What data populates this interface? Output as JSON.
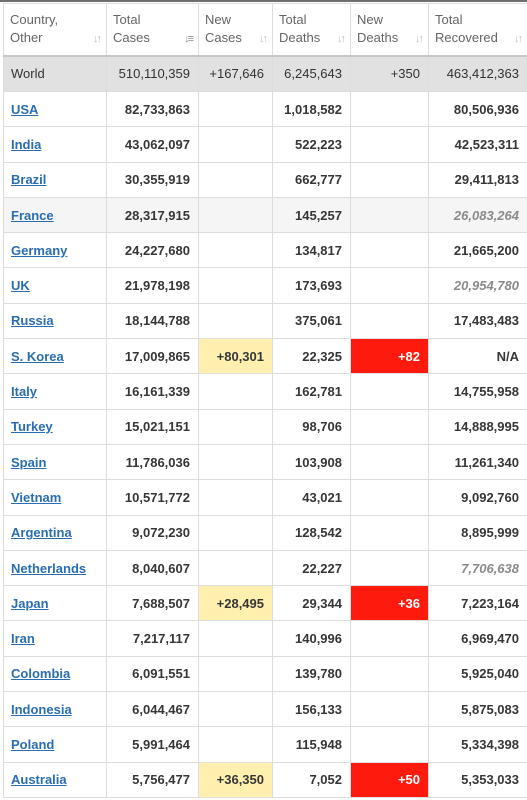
{
  "headers": {
    "country": "Country, Other",
    "total_cases": "Total Cases",
    "new_cases": "New Cases",
    "total_deaths": "Total Deaths",
    "new_deaths": "New Deaths",
    "total_recovered": "Total Recovered"
  },
  "sort_icon": "sort-arrows-icon",
  "colors": {
    "link": "#2a6db0",
    "new_cases_highlight": "#fff0b0",
    "new_deaths_highlight": "#ff1a0e",
    "world_row": "#e1e1e1"
  },
  "world": {
    "country": "World",
    "total_cases": "510,110,359",
    "new_cases": "+167,646",
    "total_deaths": "6,245,643",
    "new_deaths": "+350",
    "total_recovered": "463,412,363"
  },
  "rows": [
    {
      "country": "USA",
      "total_cases": "82,733,863",
      "new_cases": "",
      "total_deaths": "1,018,582",
      "new_deaths": "",
      "total_recovered": "80,506,936"
    },
    {
      "country": "India",
      "total_cases": "43,062,097",
      "new_cases": "",
      "total_deaths": "522,223",
      "new_deaths": "",
      "total_recovered": "42,523,311"
    },
    {
      "country": "Brazil",
      "total_cases": "30,355,919",
      "new_cases": "",
      "total_deaths": "662,777",
      "new_deaths": "",
      "total_recovered": "29,411,813"
    },
    {
      "country": "France",
      "total_cases": "28,317,915",
      "new_cases": "",
      "total_deaths": "145,257",
      "new_deaths": "",
      "total_recovered": "26,083,264"
    },
    {
      "country": "Germany",
      "total_cases": "24,227,680",
      "new_cases": "",
      "total_deaths": "134,817",
      "new_deaths": "",
      "total_recovered": "21,665,200"
    },
    {
      "country": "UK",
      "total_cases": "21,978,198",
      "new_cases": "",
      "total_deaths": "173,693",
      "new_deaths": "",
      "total_recovered": "20,954,780"
    },
    {
      "country": "Russia",
      "total_cases": "18,144,788",
      "new_cases": "",
      "total_deaths": "375,061",
      "new_deaths": "",
      "total_recovered": "17,483,483"
    },
    {
      "country": "S. Korea",
      "total_cases": "17,009,865",
      "new_cases": "+80,301",
      "total_deaths": "22,325",
      "new_deaths": "+82",
      "total_recovered": "N/A"
    },
    {
      "country": "Italy",
      "total_cases": "16,161,339",
      "new_cases": "",
      "total_deaths": "162,781",
      "new_deaths": "",
      "total_recovered": "14,755,958"
    },
    {
      "country": "Turkey",
      "total_cases": "15,021,151",
      "new_cases": "",
      "total_deaths": "98,706",
      "new_deaths": "",
      "total_recovered": "14,888,995"
    },
    {
      "country": "Spain",
      "total_cases": "11,786,036",
      "new_cases": "",
      "total_deaths": "103,908",
      "new_deaths": "",
      "total_recovered": "11,261,340"
    },
    {
      "country": "Vietnam",
      "total_cases": "10,571,772",
      "new_cases": "",
      "total_deaths": "43,021",
      "new_deaths": "",
      "total_recovered": "9,092,760"
    },
    {
      "country": "Argentina",
      "total_cases": "9,072,230",
      "new_cases": "",
      "total_deaths": "128,542",
      "new_deaths": "",
      "total_recovered": "8,895,999"
    },
    {
      "country": "Netherlands",
      "total_cases": "8,040,607",
      "new_cases": "",
      "total_deaths": "22,227",
      "new_deaths": "",
      "total_recovered": "7,706,638"
    },
    {
      "country": "Japan",
      "total_cases": "7,688,507",
      "new_cases": "+28,495",
      "total_deaths": "29,344",
      "new_deaths": "+36",
      "total_recovered": "7,223,164"
    },
    {
      "country": "Iran",
      "total_cases": "7,217,117",
      "new_cases": "",
      "total_deaths": "140,996",
      "new_deaths": "",
      "total_recovered": "6,969,470"
    },
    {
      "country": "Colombia",
      "total_cases": "6,091,551",
      "new_cases": "",
      "total_deaths": "139,780",
      "new_deaths": "",
      "total_recovered": "5,925,040"
    },
    {
      "country": "Indonesia",
      "total_cases": "6,044,467",
      "new_cases": "",
      "total_deaths": "156,133",
      "new_deaths": "",
      "total_recovered": "5,875,083"
    },
    {
      "country": "Poland",
      "total_cases": "5,991,464",
      "new_cases": "",
      "total_deaths": "115,948",
      "new_deaths": "",
      "total_recovered": "5,334,398"
    },
    {
      "country": "Australia",
      "total_cases": "5,756,477",
      "new_cases": "+36,350",
      "total_deaths": "7,052",
      "new_deaths": "+50",
      "total_recovered": "5,353,033"
    }
  ],
  "shaded_rows": [
    "France"
  ],
  "estimated_recovered": [
    "France",
    "UK",
    "Netherlands"
  ]
}
